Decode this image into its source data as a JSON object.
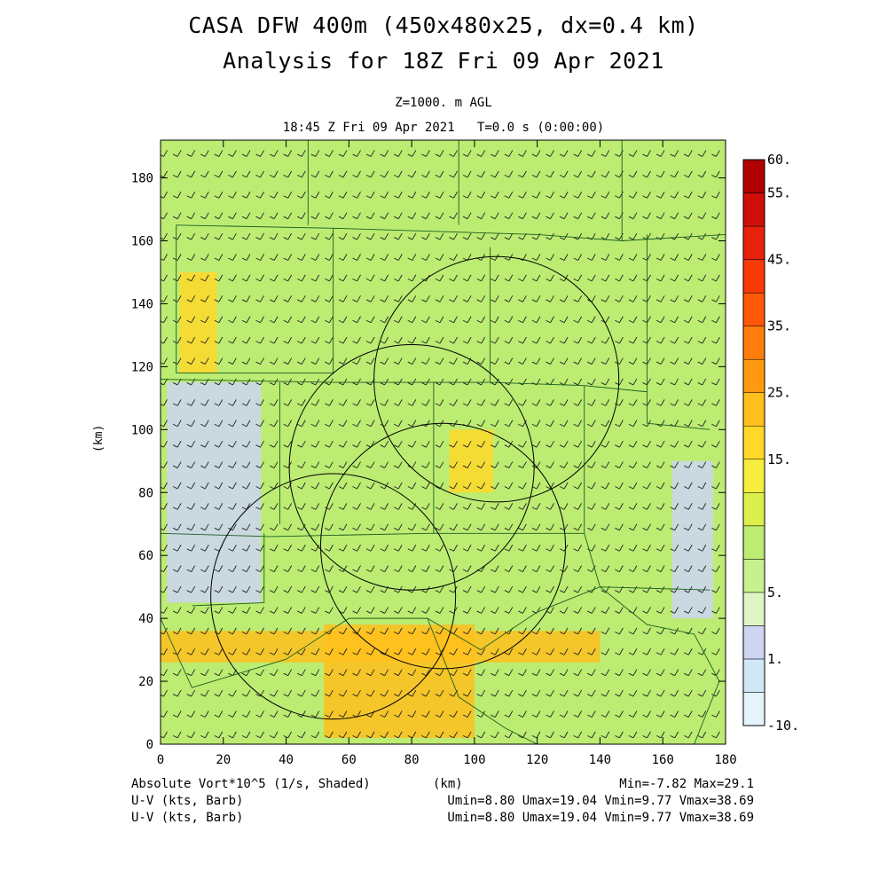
{
  "chart_data": {
    "type": "heatmap",
    "title": "CASA DFW 400m (450x480x25, dx=0.4 km)",
    "subtitle": "Analysis for 18Z Fri 09 Apr 2021",
    "level_label": "Z=1000. m AGL",
    "time_label": "18:45 Z Fri 09 Apr 2021   T=0.0 s (0:00:00)",
    "xlabel": "(km)",
    "ylabel": "(km)",
    "xlim": [
      0,
      180
    ],
    "ylim": [
      0,
      192
    ],
    "x_ticks": [
      0,
      20,
      40,
      60,
      80,
      100,
      120,
      140,
      160,
      180
    ],
    "y_ticks": [
      0,
      20,
      40,
      60,
      80,
      100,
      120,
      140,
      160,
      180
    ],
    "colorbar": {
      "levels": [
        -10,
        0,
        1,
        2.5,
        5,
        7.5,
        10,
        12.5,
        15,
        20,
        25,
        30,
        35,
        40,
        45,
        50,
        55,
        60
      ],
      "labels": [
        "-10.",
        "1.",
        "5.",
        "15.",
        "25.",
        "35.",
        "45.",
        "55.",
        "60."
      ],
      "label_values": [
        -10,
        1,
        5,
        15,
        25,
        35,
        45,
        55,
        60
      ],
      "colors": [
        "#e3f5fb",
        "#d0e7f6",
        "#cdd5f2",
        "#dff6c4",
        "#c7f08f",
        "#bcec72",
        "#dcf04c",
        "#f5ee3c",
        "#ffd92a",
        "#ffbf1c",
        "#ff9a10",
        "#ff7d0c",
        "#ff5808",
        "#f83a08",
        "#e8220a",
        "#cf0e0a",
        "#b00000"
      ]
    },
    "field_name": "Absolute Vort*10^5 (1/s, Shaded)",
    "min_max": "Min=-7.82 Max=29.1",
    "vector_lines": [
      {
        "name": "U-V (kts, Barb)",
        "stats": "Umin=8.80 Umax=19.04 Vmin=9.77 Vmax=38.69"
      },
      {
        "name": "U-V (kts, Barb)",
        "stats": "Umin=8.80 Umax=19.04 Vmin=9.77 Vmax=38.69"
      }
    ],
    "radar_rings": [
      {
        "center": [
          107,
          116
        ],
        "radius": 39
      },
      {
        "center": [
          80,
          88
        ],
        "radius": 39
      },
      {
        "center": [
          90,
          63
        ],
        "radius": 39
      },
      {
        "center": [
          55,
          47
        ],
        "radius": 39
      }
    ],
    "shaded_regions": [
      {
        "value": 22,
        "x": [
          0,
          140
        ],
        "y": [
          26,
          36
        ]
      },
      {
        "value": 24,
        "x": [
          52,
          100
        ],
        "y": [
          2,
          38
        ]
      },
      {
        "value": 16,
        "x": [
          6,
          18
        ],
        "y": [
          118,
          150
        ]
      },
      {
        "value": 1,
        "x": [
          2,
          32
        ],
        "y": [
          45,
          115
        ]
      },
      {
        "value": 1,
        "x": [
          163,
          176
        ],
        "y": [
          40,
          90
        ]
      },
      {
        "value": 18,
        "x": [
          92,
          106
        ],
        "y": [
          80,
          100
        ]
      }
    ],
    "wind_barb_direction": "southerly"
  }
}
